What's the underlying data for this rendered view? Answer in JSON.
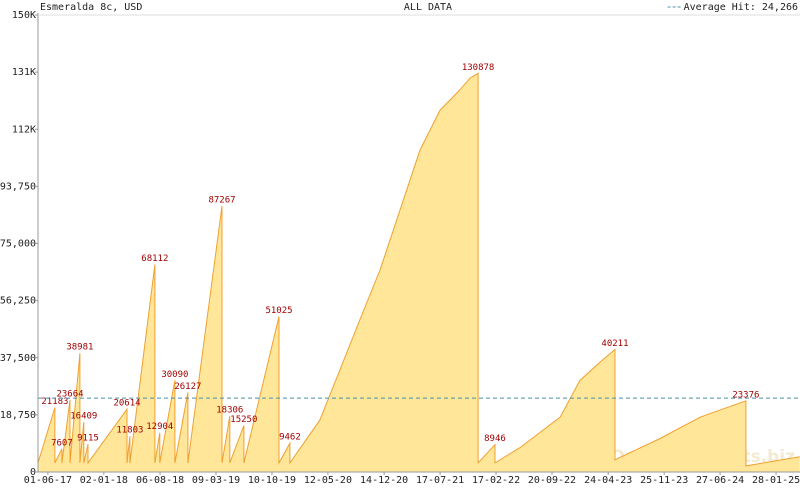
{
  "chart_data": {
    "type": "area",
    "title": "Esmeralda 8c, USD",
    "subtitle": "ALL DATA",
    "watermark": "Online-Jackpots.biz",
    "average": {
      "value": 24266,
      "label": "Average Hit: 24,266",
      "color": "#4a90a8"
    },
    "series": [
      {
        "name": "Esmeralda 8c, USD",
        "color": "#f0a030",
        "fill": "#ffe699",
        "label_color": "#a00000",
        "x": [
          "2017-04-24",
          "2017-06-28",
          "2017-06-28",
          "2017-07-25",
          "2017-07-25",
          "2017-08-25",
          "2017-08-25",
          "2017-10-02",
          "2017-10-02",
          "2017-10-17",
          "2017-10-17",
          "2017-11-02",
          "2017-11-02",
          "2018-04-01",
          "2018-04-01",
          "2018-04-12",
          "2018-04-12",
          "2018-07-17",
          "2018-07-17",
          "2018-08-05",
          "2018-08-05",
          "2018-10-02",
          "2018-10-02",
          "2018-11-21",
          "2018-11-21",
          "2019-04-01",
          "2019-04-01",
          "2019-05-01",
          "2019-05-01",
          "2019-06-24",
          "2019-06-24",
          "2019-11-06",
          "2019-11-06",
          "2019-12-18",
          "2019-12-18",
          "2020-04-11",
          "2020-06-27",
          "2020-09-12",
          "2020-11-28",
          "2021-02-13",
          "2021-05-01",
          "2021-07-17",
          "2021-10-01",
          "2021-11-09",
          "2021-12-10",
          "2021-12-10",
          "2022-02-13",
          "2022-02-13",
          "2022-05-20",
          "2022-10-21",
          "2023-01-05",
          "2023-03-23",
          "2023-05-20",
          "2023-05-20",
          "2023-11-09",
          "2024-04-11",
          "2024-10-04",
          "2024-10-04",
          "2025-04-29"
        ],
        "values": [
          3000,
          21183,
          3000,
          7607,
          3000,
          23664,
          3000,
          38981,
          3000,
          16409,
          3000,
          9115,
          3000,
          20614,
          3000,
          11803,
          3000,
          68112,
          3000,
          12904,
          3000,
          30090,
          3000,
          26127,
          3000,
          87267,
          3000,
          18306,
          3000,
          15250,
          3000,
          51025,
          3000,
          9462,
          3000,
          17000,
          33500,
          50000,
          66300,
          86000,
          105700,
          118800,
          125400,
          129300,
          130878,
          3000,
          8946,
          3000,
          8000,
          18000,
          30000,
          36000,
          40211,
          4000,
          11000,
          18000,
          23376,
          2000,
          5000
        ]
      }
    ],
    "xlim": [
      "2017-04-24",
      "2025-04-30"
    ],
    "xticks": [
      {
        "value": "2017-06-01",
        "label": "01-06-17"
      },
      {
        "value": "2018-01-02",
        "label": "02-01-18"
      },
      {
        "value": "2018-08-06",
        "label": "06-08-18"
      },
      {
        "value": "2019-03-09",
        "label": "09-03-19"
      },
      {
        "value": "2019-10-10",
        "label": "10-10-19"
      },
      {
        "value": "2020-05-12",
        "label": "12-05-20"
      },
      {
        "value": "2020-12-14",
        "label": "14-12-20"
      },
      {
        "value": "2021-07-17",
        "label": "17-07-21"
      },
      {
        "value": "2022-02-17",
        "label": "17-02-22"
      },
      {
        "value": "2022-09-20",
        "label": "20-09-22"
      },
      {
        "value": "2023-04-24",
        "label": "24-04-23"
      },
      {
        "value": "2023-11-25",
        "label": "25-11-23"
      },
      {
        "value": "2024-06-27",
        "label": "27-06-24"
      },
      {
        "value": "2025-01-28",
        "label": "28-01-25"
      }
    ],
    "ylim": [
      0,
      150000
    ],
    "yticks": [
      0,
      {
        "value": 18750,
        "label": "18,750"
      },
      {
        "value": 37500,
        "label": "37,500"
      },
      {
        "value": 56250,
        "label": "56,250"
      },
      {
        "value": 75000,
        "label": "75,000"
      },
      {
        "value": 93750,
        "label": "93,750"
      },
      {
        "value": 112500,
        "label": "112K"
      },
      {
        "value": 131250,
        "label": "131K"
      },
      {
        "value": 150000,
        "label": "150K"
      }
    ]
  }
}
